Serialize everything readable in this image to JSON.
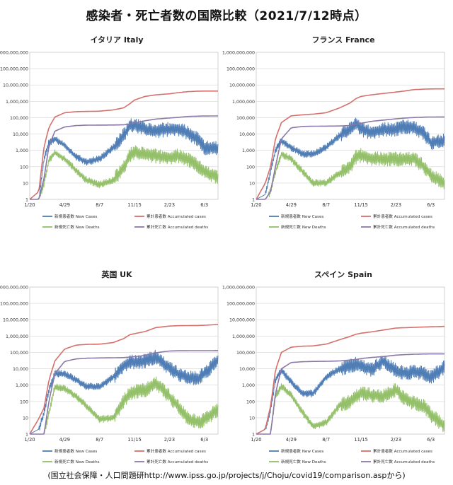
{
  "title": "感染者・死亡者数の国際比較（2021/7/12時点）",
  "source": "(国立社会保障・人口問題研http://www.ipss.go.jp/projects/j/Choju/covid19/comparison.aspから)",
  "colors": {
    "new_cases": "#4f7db5",
    "accumulated_cases": "#d6706c",
    "new_deaths": "#94c06a",
    "accumulated_deaths": "#8a78a8"
  },
  "chart_data": [
    {
      "type": "line",
      "title": "イタリア Italy",
      "yscale": "log",
      "ylim": [
        1,
        1000000000
      ],
      "yticks": [
        "1",
        "10",
        "100",
        "1,000",
        "10,000",
        "100,000",
        "1,000,000",
        "10,000,000",
        "100,000,000",
        "1,000,000,000"
      ],
      "xticks": [
        "1/20",
        "4/29",
        "8/7",
        "11/15",
        "2/23",
        "6/3"
      ],
      "x": [
        "1/20",
        "2/15",
        "3/1",
        "3/15",
        "4/1",
        "4/29",
        "6/1",
        "7/1",
        "8/7",
        "9/15",
        "10/15",
        "11/1",
        "11/15",
        "12/15",
        "1/15",
        "2/23",
        "3/20",
        "4/15",
        "5/15",
        "6/3",
        "7/12"
      ],
      "series": [
        {
          "name": "新規患者数 New Cases",
          "values": [
            1,
            1,
            300,
            3000,
            5000,
            2000,
            400,
            200,
            300,
            1500,
            8000,
            30000,
            35000,
            20000,
            15000,
            20000,
            20000,
            12000,
            5000,
            1500,
            1300
          ]
        },
        {
          "name": "累計患者数 Accumulated cases",
          "values": [
            1,
            3,
            1700,
            25000,
            110000,
            200000,
            235000,
            241000,
            250000,
            300000,
            400000,
            700000,
            1200000,
            2000000,
            2500000,
            2900000,
            3400000,
            3900000,
            4200000,
            4250000,
            4270000
          ]
        },
        {
          "name": "新規死亡数 New Deaths",
          "values": [
            1,
            1,
            10,
            250,
            700,
            300,
            60,
            15,
            8,
            15,
            80,
            500,
            700,
            600,
            450,
            350,
            450,
            300,
            120,
            50,
            20
          ]
        },
        {
          "name": "累計死亡数 Accumulated deaths",
          "values": [
            1,
            1,
            20,
            1800,
            15000,
            27000,
            33000,
            34800,
            35200,
            35700,
            36500,
            40000,
            48000,
            65000,
            82000,
            96000,
            104000,
            118000,
            124000,
            126500,
            127700
          ]
        }
      ],
      "legend": [
        "新規患者数 New Cases",
        "累計患者数 Accumulated cases",
        "新規死亡数 New Deaths",
        "累計死亡数 Accumulated deaths"
      ]
    },
    {
      "type": "line",
      "title": "フランス France",
      "yscale": "log",
      "ylim": [
        1,
        1000000000
      ],
      "yticks": [
        "1",
        "10",
        "100",
        "1,000",
        "10,000",
        "100,000",
        "1,000,000",
        "10,000,000",
        "100,000,000",
        "1,000,000,000"
      ],
      "xticks": [
        "1/20",
        "4/29",
        "8/7",
        "11/15",
        "2/23",
        "6/3"
      ],
      "x": [
        "1/20",
        "2/15",
        "3/1",
        "3/15",
        "4/1",
        "4/29",
        "6/1",
        "7/1",
        "8/7",
        "9/15",
        "10/15",
        "11/1",
        "11/15",
        "12/15",
        "1/15",
        "2/23",
        "3/20",
        "4/15",
        "5/15",
        "6/3",
        "7/12"
      ],
      "series": [
        {
          "name": "新規患者数 New Cases",
          "values": [
            1,
            2,
            50,
            1000,
            4000,
            1500,
            600,
            600,
            1500,
            8000,
            20000,
            45000,
            20000,
            12000,
            18000,
            20000,
            30000,
            25000,
            10000,
            3000,
            4000
          ]
        },
        {
          "name": "累計患者数 Accumulated cases",
          "values": [
            1,
            10,
            100,
            5000,
            50000,
            130000,
            150000,
            165000,
            200000,
            400000,
            800000,
            1500000,
            2000000,
            2500000,
            3000000,
            3700000,
            4300000,
            5200000,
            5600000,
            5750000,
            5800000
          ]
        },
        {
          "name": "新規死亡数 New Deaths",
          "values": [
            1,
            1,
            3,
            50,
            600,
            300,
            50,
            10,
            10,
            40,
            100,
            400,
            500,
            300,
            300,
            300,
            300,
            300,
            100,
            30,
            10
          ]
        },
        {
          "name": "累計死亡数 Accumulated deaths",
          "values": [
            1,
            1,
            3,
            100,
            5000,
            24000,
            29000,
            30000,
            30500,
            31000,
            33000,
            40000,
            45000,
            60000,
            70000,
            85000,
            95000,
            102000,
            108000,
            110000,
            111000
          ]
        }
      ],
      "legend": [
        "新規患者数 New Cases",
        "累計患者数 Accumulated cases",
        "新規死亡数 New Deaths",
        "累計死亡数 Accumulated deaths"
      ]
    },
    {
      "type": "line",
      "title": "英国 UK",
      "yscale": "log",
      "ylim": [
        1,
        1000000000
      ],
      "yticks": [
        "1",
        "10",
        "100",
        "1,000",
        "10,000",
        "100,000",
        "1,000,000",
        "10,000,000",
        "100,000,000",
        "1,000,000,000"
      ],
      "xticks": [
        "1/20",
        "4/29",
        "8/7",
        "11/15",
        "2/23",
        "6/3"
      ],
      "x": [
        "1/20",
        "2/15",
        "3/1",
        "3/15",
        "4/1",
        "4/29",
        "6/1",
        "7/1",
        "8/7",
        "9/15",
        "10/15",
        "11/1",
        "11/15",
        "12/15",
        "1/15",
        "2/23",
        "3/20",
        "4/15",
        "5/15",
        "6/3",
        "7/12"
      ],
      "series": [
        {
          "name": "新規患者数 New Cases",
          "values": [
            1,
            2,
            20,
            500,
            5000,
            5000,
            2000,
            800,
            800,
            3000,
            15000,
            25000,
            25000,
            30000,
            55000,
            10000,
            5000,
            3000,
            2500,
            5000,
            35000
          ]
        },
        {
          "name": "累計患者数 Accumulated cases",
          "values": [
            1,
            9,
            40,
            2000,
            30000,
            160000,
            280000,
            310000,
            320000,
            400000,
            700000,
            1200000,
            1400000,
            1900000,
            3300000,
            4100000,
            4300000,
            4400000,
            4450000,
            4550000,
            5150000
          ]
        },
        {
          "name": "新規死亡数 New Deaths",
          "values": [
            1,
            1,
            1,
            20,
            800,
            600,
            200,
            50,
            8,
            10,
            100,
            300,
            400,
            500,
            1300,
            200,
            50,
            10,
            5,
            8,
            30
          ]
        },
        {
          "name": "累計死亡数 Accumulated deaths",
          "values": [
            1,
            1,
            1,
            100,
            5000,
            28000,
            40000,
            44000,
            46000,
            47000,
            48000,
            52000,
            55000,
            65000,
            95000,
            122000,
            126000,
            127000,
            127500,
            127800,
            128400
          ]
        }
      ],
      "legend": [
        "新規患者数 New Cases",
        "累計患者数 Accumulated cases",
        "新規死亡数 New Deaths",
        "累計死亡数 Accumulated deaths"
      ]
    },
    {
      "type": "line",
      "title": "スペイン Spain",
      "yscale": "log",
      "ylim": [
        1,
        1000000000
      ],
      "yticks": [
        "1",
        "10",
        "100",
        "1,000",
        "10,000",
        "100,000",
        "1,000,000",
        "10,000,000",
        "100,000,000",
        "1,000,000,000"
      ],
      "xticks": [
        "1/20",
        "4/29",
        "8/7",
        "11/15",
        "2/23",
        "6/3"
      ],
      "x": [
        "1/20",
        "2/15",
        "3/1",
        "3/15",
        "4/1",
        "4/29",
        "6/1",
        "7/1",
        "8/7",
        "9/15",
        "10/15",
        "11/1",
        "11/15",
        "12/15",
        "1/15",
        "2/23",
        "3/20",
        "4/15",
        "5/15",
        "6/3",
        "7/12"
      ],
      "series": [
        {
          "name": "新規患者数 New Cases",
          "values": [
            1,
            2,
            30,
            2000,
            8000,
            1500,
            300,
            300,
            3000,
            10000,
            15000,
            20000,
            15000,
            8000,
            30000,
            8000,
            5000,
            7000,
            5000,
            3000,
            12000
          ]
        },
        {
          "name": "累計患者数 Accumulated cases",
          "values": [
            1,
            2,
            50,
            8000,
            100000,
            210000,
            240000,
            250000,
            320000,
            600000,
            950000,
            1300000,
            1500000,
            1800000,
            2300000,
            3100000,
            3250000,
            3400000,
            3600000,
            3700000,
            3900000
          ]
        },
        {
          "name": "新規死亡数 New Deaths",
          "values": [
            1,
            1,
            1,
            200,
            800,
            250,
            20,
            3,
            5,
            60,
            100,
            200,
            300,
            250,
            200,
            500,
            150,
            80,
            50,
            15,
            3
          ]
        },
        {
          "name": "累計死亡数 Accumulated deaths",
          "values": [
            1,
            1,
            1,
            300,
            10000,
            24000,
            27000,
            28000,
            28500,
            30000,
            34000,
            37000,
            42000,
            49000,
            55000,
            68000,
            73000,
            77000,
            80000,
            80600,
            81000
          ]
        }
      ],
      "legend": [
        "新規患者数 New Cases",
        "累計患者数 Accumulated cases",
        "新規死亡数 New Deaths",
        "累計死亡数 Accumulated deaths"
      ]
    }
  ]
}
